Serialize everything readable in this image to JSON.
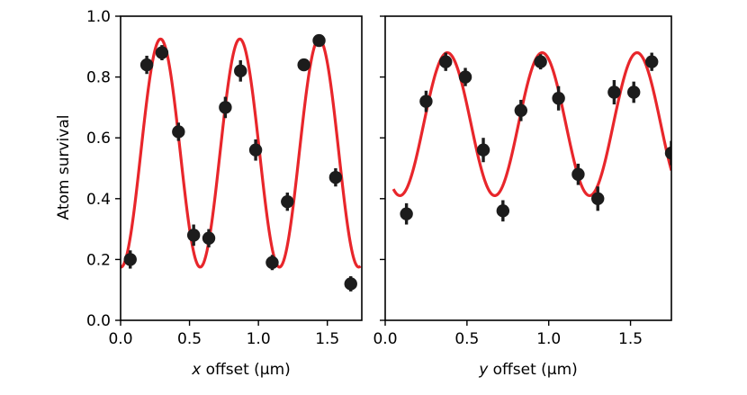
{
  "colors": {
    "fit": "#e8262b",
    "point": "#1c1c1c",
    "axis": "#000000"
  },
  "chart_data": [
    {
      "type": "scatter",
      "xlabel_var": "x",
      "xlabel_rest": " offset (μm)",
      "ylabel": "Atom survival",
      "xlim": [
        0.0,
        1.75
      ],
      "ylim": [
        0.0,
        1.0
      ],
      "xticks": [
        0.0,
        0.5,
        1.0,
        1.5
      ],
      "xtick_labels": [
        "0.0",
        "0.5",
        "1.0",
        "1.5"
      ],
      "yticks": [
        0.0,
        0.2,
        0.4,
        0.6,
        0.8,
        1.0
      ],
      "ytick_labels": [
        "0.0",
        "0.2",
        "0.4",
        "0.6",
        "0.8",
        "1.0"
      ],
      "show_ytick_labels": true,
      "points": [
        {
          "x": 0.07,
          "y": 0.2,
          "err": 0.03
        },
        {
          "x": 0.19,
          "y": 0.84,
          "err": 0.03
        },
        {
          "x": 0.3,
          "y": 0.88,
          "err": 0.025
        },
        {
          "x": 0.42,
          "y": 0.62,
          "err": 0.03
        },
        {
          "x": 0.53,
          "y": 0.28,
          "err": 0.035
        },
        {
          "x": 0.64,
          "y": 0.27,
          "err": 0.03
        },
        {
          "x": 0.76,
          "y": 0.7,
          "err": 0.035
        },
        {
          "x": 0.87,
          "y": 0.82,
          "err": 0.035
        },
        {
          "x": 0.98,
          "y": 0.56,
          "err": 0.035
        },
        {
          "x": 1.1,
          "y": 0.19,
          "err": 0.025
        },
        {
          "x": 1.21,
          "y": 0.39,
          "err": 0.03
        },
        {
          "x": 1.33,
          "y": 0.84,
          "err": 0.02
        },
        {
          "x": 1.44,
          "y": 0.92,
          "err": 0.015
        },
        {
          "x": 1.56,
          "y": 0.47,
          "err": 0.03
        },
        {
          "x": 1.67,
          "y": 0.12,
          "err": 0.025
        }
      ],
      "fit": {
        "offset": 0.55,
        "amplitude": 0.375,
        "period": 0.575,
        "peak_x": 0.29,
        "x_start": 0.0,
        "x_end": 1.74
      }
    },
    {
      "type": "scatter",
      "xlabel_var": "y",
      "xlabel_rest": " offset (μm)",
      "ylabel": "",
      "xlim": [
        0.0,
        1.75
      ],
      "ylim": [
        0.0,
        1.0
      ],
      "xticks": [
        0.0,
        0.5,
        1.0,
        1.5
      ],
      "xtick_labels": [
        "0.0",
        "0.5",
        "1.0",
        "1.5"
      ],
      "yticks": [
        0.0,
        0.2,
        0.4,
        0.6,
        0.8,
        1.0
      ],
      "ytick_labels": [],
      "show_ytick_labels": false,
      "points": [
        {
          "x": 0.13,
          "y": 0.35,
          "err": 0.035
        },
        {
          "x": 0.25,
          "y": 0.72,
          "err": 0.035
        },
        {
          "x": 0.37,
          "y": 0.85,
          "err": 0.03
        },
        {
          "x": 0.49,
          "y": 0.8,
          "err": 0.03
        },
        {
          "x": 0.6,
          "y": 0.56,
          "err": 0.04
        },
        {
          "x": 0.72,
          "y": 0.36,
          "err": 0.035
        },
        {
          "x": 0.83,
          "y": 0.69,
          "err": 0.035
        },
        {
          "x": 0.95,
          "y": 0.85,
          "err": 0.025
        },
        {
          "x": 1.06,
          "y": 0.73,
          "err": 0.04
        },
        {
          "x": 1.18,
          "y": 0.48,
          "err": 0.035
        },
        {
          "x": 1.3,
          "y": 0.4,
          "err": 0.04
        },
        {
          "x": 1.4,
          "y": 0.75,
          "err": 0.04
        },
        {
          "x": 1.52,
          "y": 0.75,
          "err": 0.035
        },
        {
          "x": 1.63,
          "y": 0.85,
          "err": 0.03
        },
        {
          "x": 1.75,
          "y": 0.55,
          "err": 0.04
        }
      ],
      "fit": {
        "offset": 0.645,
        "amplitude": 0.235,
        "period": 0.58,
        "peak_x": 0.38,
        "x_start": 0.05,
        "x_end": 1.75
      }
    }
  ]
}
